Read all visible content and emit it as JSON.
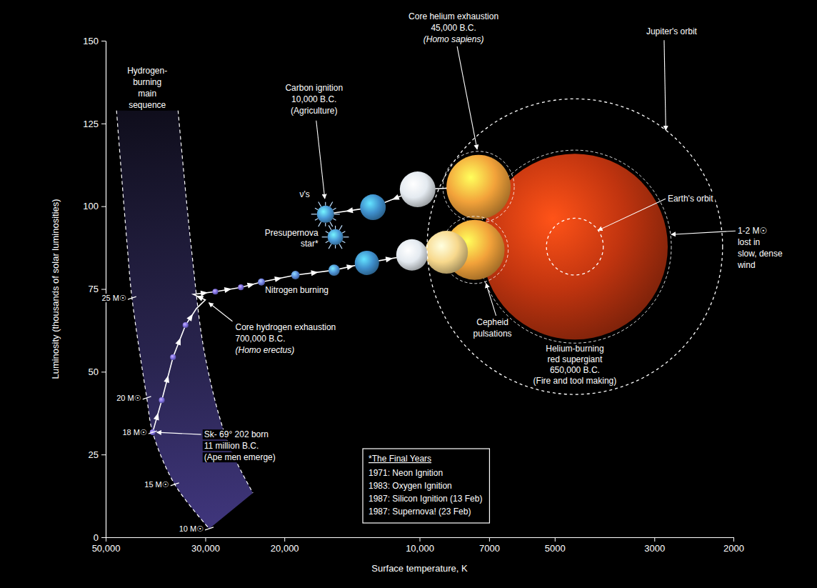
{
  "chart_data": {
    "type": "line",
    "x_label": "Surface temperature, K",
    "y_label": "Luminosity (thousands of solar luminosities)",
    "log": "x",
    "xlim": [
      50000,
      2000
    ],
    "xticks": [
      {
        "value": 50000,
        "label": "50,000"
      },
      {
        "value": 30000,
        "label": "30,000"
      },
      {
        "value": 20000,
        "label": "20,000"
      },
      {
        "value": 10000,
        "label": "10,000"
      },
      7000,
      5000,
      3000,
      2000
    ],
    "ylim": [
      0,
      150
    ],
    "yticks": [
      0,
      25,
      50,
      75,
      100,
      125,
      150
    ],
    "series": [
      {
        "type": "line",
        "line_style": "dashed",
        "color": "#ffffff",
        "x": [
          47300,
          44700,
          43700,
          40500,
          39300,
          35100,
          29400
        ],
        "values": [
          128.9,
          86.8,
          72.3,
          42.1,
          31.7,
          16,
          2.6
        ]
      },
      {
        "type": "line",
        "line_style": "dashed",
        "color": "#ffffff",
        "x": [
          34500,
          32200,
          30000,
          26700,
          23500
        ],
        "values": [
          128.9,
          86.8,
          54.4,
          28.5,
          13.4
        ]
      },
      {
        "type": "line",
        "line_style": "solid",
        "marker": "arrow",
        "color": "#ffffff",
        "x": [
          39300,
          37500,
          35400,
          33200,
          31400,
          30000,
          31900,
          28500,
          25000,
          22500,
          18900,
          15500,
          13100,
          10400,
          8710,
          7540,
          4510,
          7390,
          10100,
          12700,
          16200
        ],
        "values": [
          31.7,
          41.4,
          54.4,
          64.1,
          69.1,
          71.7,
          73.4,
          74.2,
          75.5,
          77.1,
          79.2,
          80.7,
          82.9,
          85.3,
          86.1,
          86.8,
          87.8,
          105.8,
          105.1,
          99.7,
          97.6
        ]
      },
      {
        "type": "scatter",
        "marker": "sphere",
        "x": [
          39300,
          37500,
          35400,
          33200,
          28500,
          25000,
          22500,
          18900,
          15500,
          13100,
          10400,
          8710,
          7540,
          4510,
          7390,
          10100,
          12700
        ],
        "values": [
          31.7,
          41.4,
          54.4,
          64.1,
          74.2,
          75.5,
          77.1,
          79.2,
          80.7,
          82.9,
          85.3,
          86.1,
          86.8,
          87.8,
          105.8,
          105.1,
          99.7
        ],
        "size": [
          22,
          22,
          22,
          22,
          22,
          22,
          27,
          32,
          43,
          92,
          119,
          162,
          227,
          703,
          243,
          135,
          97
        ],
        "colors": [
          "#7d6fe0",
          "#7d6fe0",
          "#7d6fe0",
          "#7d6fe0",
          "#7d6fe0",
          "#7d6fe0",
          "#6f7ee0",
          "#5b8ad8",
          "#4f94d6",
          "#3f8fcc",
          "#e4eaf0",
          "#f7d88c",
          "#f2a23a",
          "#c0340f",
          "#f2a23a",
          "#e4eaf0",
          "#3f8fcc"
        ]
      },
      {
        "type": "scatter",
        "marker": "burst",
        "x": [
          16200,
          15400
        ],
        "values": [
          97.6,
          90.7
        ],
        "size": [
          65,
          59
        ],
        "colors": [
          "#4a9ad8",
          "#4a9ad8"
        ]
      }
    ],
    "mass_labels": {
      "x": [
        43700,
        40500,
        39300,
        35100,
        29400
      ],
      "values": [
        72.3,
        42.1,
        31.7,
        16,
        2.6
      ],
      "labels": [
        "25 M☉",
        "20 M☉",
        "18 M☉",
        "15 M☉",
        "10 M☉"
      ]
    },
    "annotations": [
      {
        "text": [
          "Hydrogen-",
          "burning",
          "main",
          "sequence"
        ],
        "x": 40400,
        "y": 140
      },
      {
        "text": [
          "Core hydrogen exhaustion",
          "700,000 B.C.",
          "(Homo erectus)"
        ],
        "x": 30000,
        "y": 71.7
      },
      {
        "text": [
          "Sk- 69° 202 born",
          "11 million B.C.",
          "(Ape men emerge)"
        ],
        "x": 39300,
        "y": 31.7
      },
      {
        "text": [
          "Nitrogen burning"
        ],
        "x": 18900,
        "y": 79.2
      },
      {
        "text": [
          "Carbon ignition",
          "10,000 B.C.",
          "(Agriculture)"
        ],
        "x": 16200,
        "y": 97.6
      },
      {
        "text": [
          "ν's"
        ],
        "x": 16200,
        "y": 97.6
      },
      {
        "text": [
          "Presupernova",
          "star*"
        ],
        "x": 15400,
        "y": 90.7
      },
      {
        "text": [
          "Core helium exhaustion",
          "45,000 B.C.",
          "(Homo sapiens)"
        ],
        "x": 7390,
        "y": 105.8
      },
      {
        "text": [
          "Cepheid",
          "pulsations"
        ],
        "x": 7540,
        "y": 86.8
      },
      {
        "text": [
          "Helium-burning",
          "red supergiant",
          "650,000 B.C.",
          "(Fire and tool making)"
        ],
        "x": 4510,
        "y": 87.8
      },
      {
        "text": [
          "1-2 M☉",
          "lost in",
          "slow, dense",
          "wind"
        ],
        "x": 4510,
        "y": 87.8
      }
    ],
    "orbits": [
      {
        "label": "Earth's orbit",
        "radius": 1
      },
      {
        "label": "Jupiter's orbit",
        "radius": 5.2
      }
    ],
    "final_years": {
      "title": "*The Final Years",
      "events": [
        "1971: Neon Ignition",
        "1983: Oxygen Ignition",
        "1987: Silicon Ignition (13 Feb)",
        "1987: Supernova! (23 Feb)"
      ]
    }
  }
}
